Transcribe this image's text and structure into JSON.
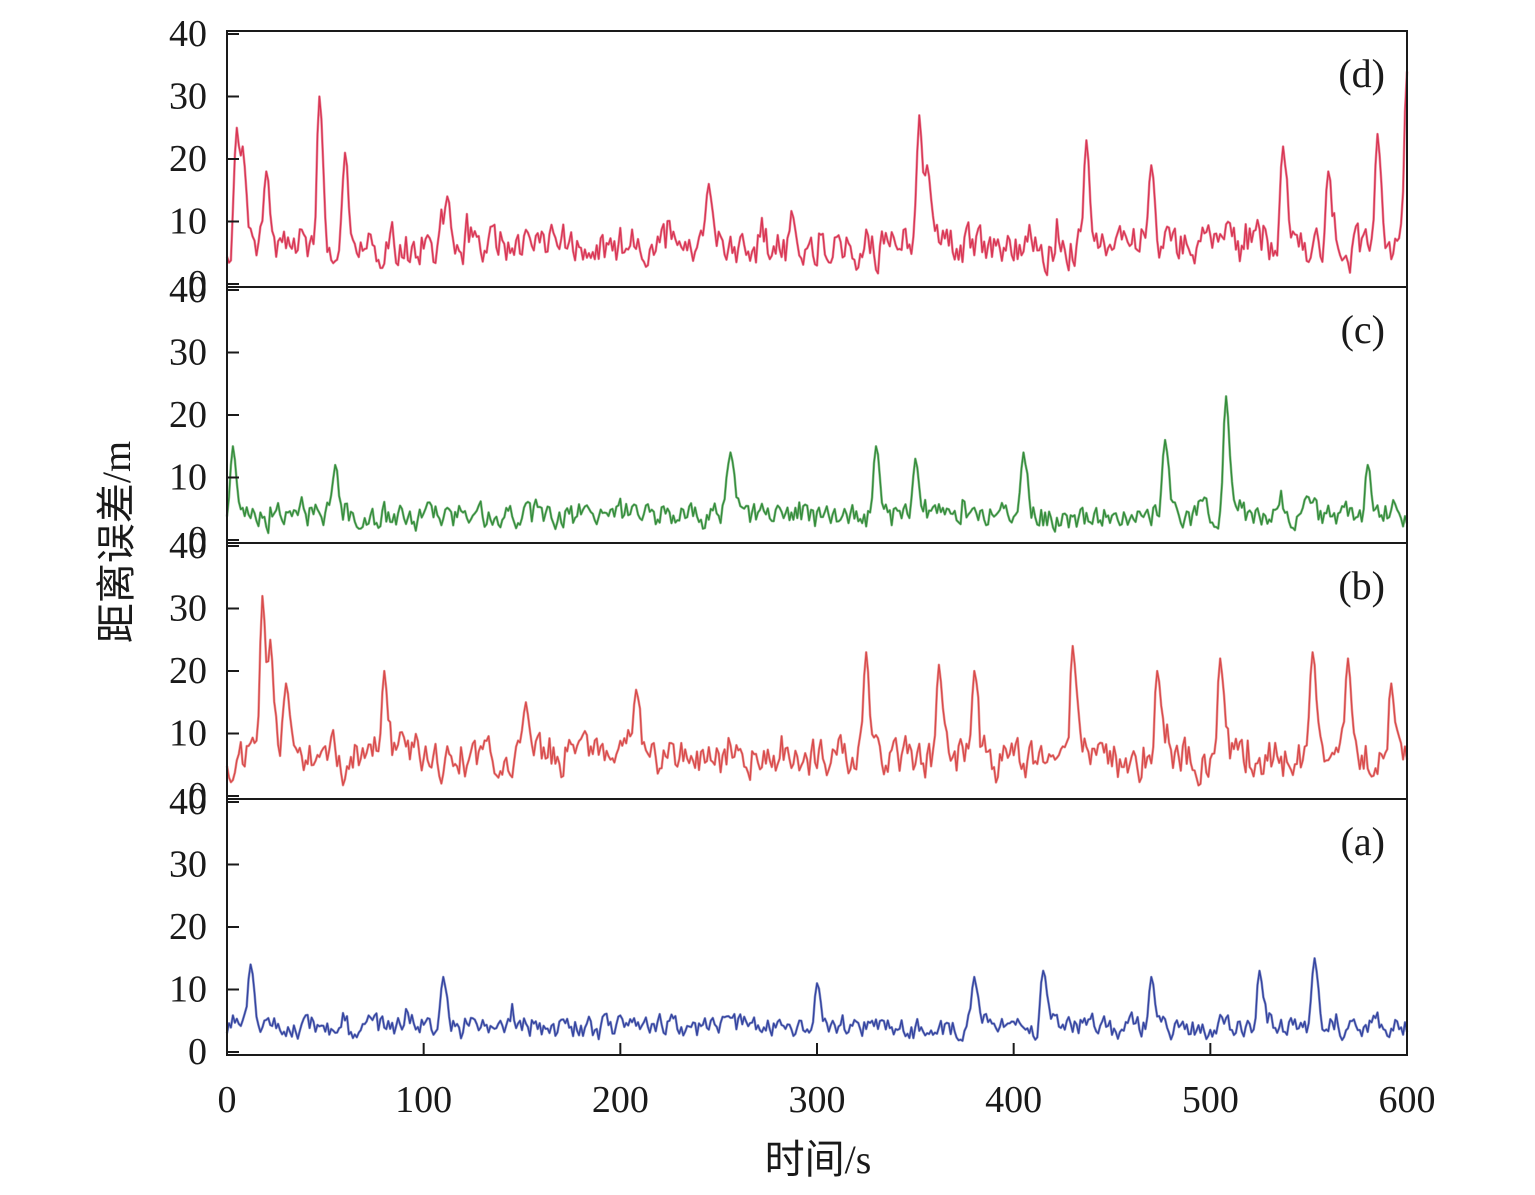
{
  "chart_data": {
    "type": "line",
    "layout": "4 vertically stacked panels sharing the x axis",
    "xlabel": "时间/s",
    "ylabel": "距离误差/m",
    "xlim": [
      0,
      600
    ],
    "xticks": [
      0,
      100,
      200,
      300,
      400,
      500,
      600
    ],
    "x_tick_labels": [
      "0",
      "100",
      "200",
      "300",
      "400",
      "500",
      "600"
    ],
    "ylim": [
      0,
      40
    ],
    "yticks": [
      0,
      10,
      20,
      30,
      40
    ],
    "y_tick_labels": [
      "0",
      "10",
      "20",
      "30",
      "40"
    ],
    "panels": [
      {
        "label": "(d)",
        "color": "#d8304f",
        "baseline": 6,
        "spread": 6,
        "seed": 41,
        "peaks": [
          [
            5,
            25
          ],
          [
            8,
            22
          ],
          [
            20,
            18
          ],
          [
            47,
            30
          ],
          [
            60,
            21
          ],
          [
            112,
            14
          ],
          [
            245,
            16
          ],
          [
            352,
            27
          ],
          [
            356,
            19
          ],
          [
            437,
            23
          ],
          [
            470,
            19
          ],
          [
            537,
            22
          ],
          [
            560,
            18
          ],
          [
            585,
            24
          ],
          [
            600,
            34
          ]
        ]
      },
      {
        "label": "(c)",
        "color": "#2e8a35",
        "baseline": 4,
        "spread": 4,
        "seed": 23,
        "peaks": [
          [
            3,
            15
          ],
          [
            55,
            12
          ],
          [
            256,
            14
          ],
          [
            330,
            15
          ],
          [
            350,
            13
          ],
          [
            405,
            14
          ],
          [
            477,
            16
          ],
          [
            508,
            23
          ],
          [
            580,
            12
          ]
        ]
      },
      {
        "label": "(b)",
        "color": "#d84747",
        "baseline": 6,
        "spread": 6,
        "seed": 11,
        "peaks": [
          [
            18,
            32
          ],
          [
            22,
            25
          ],
          [
            30,
            18
          ],
          [
            80,
            20
          ],
          [
            152,
            15
          ],
          [
            208,
            17
          ],
          [
            325,
            23
          ],
          [
            362,
            21
          ],
          [
            380,
            20
          ],
          [
            430,
            24
          ],
          [
            473,
            20
          ],
          [
            505,
            22
          ],
          [
            552,
            23
          ],
          [
            570,
            22
          ],
          [
            592,
            18
          ]
        ]
      },
      {
        "label": "(a)",
        "color": "#2e3f9e",
        "baseline": 4,
        "spread": 3.6,
        "seed": 7,
        "peaks": [
          [
            12,
            14
          ],
          [
            110,
            12
          ],
          [
            300,
            11
          ],
          [
            380,
            12
          ],
          [
            415,
            13
          ],
          [
            470,
            12
          ],
          [
            525,
            13
          ],
          [
            553,
            15
          ]
        ]
      }
    ],
    "series_note": "Each panel plots distance error (0–40 m) over 0–600 s sampled at 1 s; baseline/spread give typical level, peaks list notable spikes [time_s, error_m]."
  }
}
